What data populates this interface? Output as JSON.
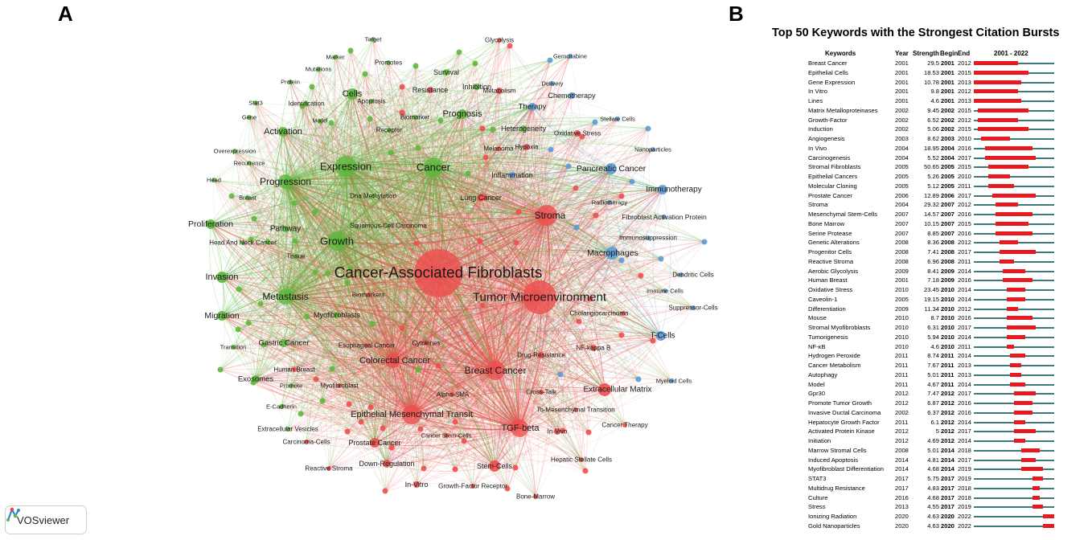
{
  "panel_a": {
    "letter": "A",
    "badge": {
      "icon": "vosviewer-logo-icon",
      "text": "VOSviewer"
    },
    "colors": {
      "green": "#5cb83c",
      "red": "#ee4f4f",
      "blue": "#5b9bd5"
    },
    "nodes": [
      {
        "label": "Cancer-Associated Fibroblasts",
        "cluster": "red"
      },
      {
        "label": "Tumor Microenvironment",
        "cluster": "red"
      },
      {
        "label": "Stroma",
        "cluster": "red"
      },
      {
        "label": "Breast Cancer",
        "cluster": "red"
      },
      {
        "label": "Colorectal Cancer",
        "cluster": "red"
      },
      {
        "label": "Epithelial Mesenchymal Transit",
        "cluster": "red"
      },
      {
        "label": "TGF-beta",
        "cluster": "red"
      },
      {
        "label": "Extracellular Matrix",
        "cluster": "red"
      },
      {
        "label": "Prostate Cancer",
        "cluster": "red"
      },
      {
        "label": "Stem-Cells",
        "cluster": "red"
      },
      {
        "label": "Down-Regulation",
        "cluster": "red"
      },
      {
        "label": "In-Vitro",
        "cluster": "red"
      },
      {
        "label": "In-Vivo",
        "cluster": "red"
      },
      {
        "label": "Lung Cancer",
        "cluster": "red"
      },
      {
        "label": "Hypoxia",
        "cluster": "red"
      },
      {
        "label": "Oxidative Stress",
        "cluster": "red"
      },
      {
        "label": "Metabolism",
        "cluster": "red"
      },
      {
        "label": "Glycolysis",
        "cluster": "red"
      },
      {
        "label": "Resistance",
        "cluster": "red"
      },
      {
        "label": "Drug-Resistance",
        "cluster": "red"
      },
      {
        "label": "NF-kappa B",
        "cluster": "red"
      },
      {
        "label": "Cholangiocarcinoma",
        "cluster": "red"
      },
      {
        "label": "Alpha-SMA",
        "cluster": "red"
      },
      {
        "label": "Cross-Talk",
        "cluster": "red"
      },
      {
        "label": "To-Mesenchymal Transition",
        "cluster": "red"
      },
      {
        "label": "Cancer Stem-Cells",
        "cluster": "red"
      },
      {
        "label": "Cancer Therapy",
        "cluster": "red"
      },
      {
        "label": "Hepatic Stellate Cells",
        "cluster": "red"
      },
      {
        "label": "Growth-Factor Receptor",
        "cluster": "red"
      },
      {
        "label": "Bone-Marrow",
        "cluster": "red"
      },
      {
        "label": "Reactive Stroma",
        "cluster": "red"
      },
      {
        "label": "Carcinoma-Cells",
        "cluster": "red"
      },
      {
        "label": "Myofibroblast",
        "cluster": "red"
      },
      {
        "label": "Human Breast",
        "cluster": "red"
      },
      {
        "label": "Esophageal Cancer",
        "cluster": "red"
      },
      {
        "label": "Cytokines",
        "cluster": "red"
      },
      {
        "label": "Biomarkers",
        "cluster": "red"
      },
      {
        "label": "Melanoma",
        "cluster": "red"
      },
      {
        "label": "Expression",
        "cluster": "green"
      },
      {
        "label": "Cancer",
        "cluster": "green"
      },
      {
        "label": "Growth",
        "cluster": "green"
      },
      {
        "label": "Metastasis",
        "cluster": "green"
      },
      {
        "label": "Progression",
        "cluster": "green"
      },
      {
        "label": "Cells",
        "cluster": "green"
      },
      {
        "label": "Activation",
        "cluster": "green"
      },
      {
        "label": "Prognosis",
        "cluster": "green"
      },
      {
        "label": "Invasion",
        "cluster": "green"
      },
      {
        "label": "Migration",
        "cluster": "green"
      },
      {
        "label": "Proliferation",
        "cluster": "green"
      },
      {
        "label": "Pathway",
        "cluster": "green"
      },
      {
        "label": "Gastric Cancer",
        "cluster": "green"
      },
      {
        "label": "Exosomes",
        "cluster": "green"
      },
      {
        "label": "Myofibroblasts",
        "cluster": "green"
      },
      {
        "label": "Survival",
        "cluster": "green"
      },
      {
        "label": "Inhibition",
        "cluster": "green"
      },
      {
        "label": "Heterogeneity",
        "cluster": "green"
      },
      {
        "label": "Apoptosis",
        "cluster": "green"
      },
      {
        "label": "Receptor",
        "cluster": "green"
      },
      {
        "label": "Biomarker",
        "cluster": "green"
      },
      {
        "label": "Dna Methylation",
        "cluster": "green"
      },
      {
        "label": "Squamous-Cell Carcinoma",
        "cluster": "green"
      },
      {
        "label": "Head And Neck Cancer",
        "cluster": "green"
      },
      {
        "label": "Tissue",
        "cluster": "green"
      },
      {
        "label": "Target",
        "cluster": "green"
      },
      {
        "label": "Promotes",
        "cluster": "green"
      },
      {
        "label": "Marker",
        "cluster": "green"
      },
      {
        "label": "Mutations",
        "cluster": "green"
      },
      {
        "label": "Protein",
        "cluster": "green"
      },
      {
        "label": "Identification",
        "cluster": "green"
      },
      {
        "label": "Stat3",
        "cluster": "green"
      },
      {
        "label": "Gene",
        "cluster": "green"
      },
      {
        "label": "Model",
        "cluster": "green"
      },
      {
        "label": "Overexpression",
        "cluster": "green"
      },
      {
        "label": "Recurrence",
        "cluster": "green"
      },
      {
        "label": "Head",
        "cluster": "green"
      },
      {
        "label": "Breast",
        "cluster": "green"
      },
      {
        "label": "Transition",
        "cluster": "green"
      },
      {
        "label": "Promote",
        "cluster": "green"
      },
      {
        "label": "E-Cadherin",
        "cluster": "green"
      },
      {
        "label": "Extracellular Vesicles",
        "cluster": "green"
      },
      {
        "label": "Macrophages",
        "cluster": "blue"
      },
      {
        "label": "Pancreatic Cancer",
        "cluster": "blue"
      },
      {
        "label": "Immunotherapy",
        "cluster": "blue"
      },
      {
        "label": "T-Cells",
        "cluster": "blue"
      },
      {
        "label": "Therapy",
        "cluster": "blue"
      },
      {
        "label": "Chemotherapy",
        "cluster": "blue"
      },
      {
        "label": "Inflammation",
        "cluster": "blue"
      },
      {
        "label": "Fibroblast Activation Protein",
        "cluster": "blue"
      },
      {
        "label": "Immunosuppression",
        "cluster": "blue"
      },
      {
        "label": "Dendritic Cells",
        "cluster": "blue"
      },
      {
        "label": "Immune Cells",
        "cluster": "blue"
      },
      {
        "label": "Suppressor-Cells",
        "cluster": "blue"
      },
      {
        "label": "Myeloid Cells",
        "cluster": "blue"
      },
      {
        "label": "Stellate Cells",
        "cluster": "blue"
      },
      {
        "label": "Nanoparticles",
        "cluster": "blue"
      },
      {
        "label": "Radiotherapy",
        "cluster": "blue"
      },
      {
        "label": "Gemcitabine",
        "cluster": "blue"
      },
      {
        "label": "Delivery",
        "cluster": "blue"
      }
    ]
  },
  "panel_b": {
    "letter": "B",
    "title": "Top 50 Keywords with the Strongest Citation Bursts",
    "headers": {
      "keywords": "Keywords",
      "year": "Year",
      "strength": "Strength",
      "begin": "Begin",
      "end": "End",
      "range": "2001 - 2022"
    },
    "range_start": 2001,
    "range_end": 2022,
    "colors": {
      "burst": "#e8191f",
      "track": "#3e7a79"
    },
    "rows": [
      {
        "keyword": "Breast Cancer",
        "year": "2001",
        "strength": "29.5",
        "begin": "2001",
        "end": "2012"
      },
      {
        "keyword": "Epithelial Cells",
        "year": "2001",
        "strength": "18.53",
        "begin": "2001",
        "end": "2015"
      },
      {
        "keyword": "Gene Expression",
        "year": "2001",
        "strength": "10.78",
        "begin": "2001",
        "end": "2013"
      },
      {
        "keyword": "In Vitro",
        "year": "2001",
        "strength": "9.8",
        "begin": "2001",
        "end": "2012"
      },
      {
        "keyword": "Lines",
        "year": "2001",
        "strength": "4.6",
        "begin": "2001",
        "end": "2013"
      },
      {
        "keyword": "Matrix Metalloproteinases",
        "year": "2002",
        "strength": "9.45",
        "begin": "2002",
        "end": "2015"
      },
      {
        "keyword": "Growth-Factor",
        "year": "2002",
        "strength": "6.52",
        "begin": "2002",
        "end": "2012"
      },
      {
        "keyword": "Induction",
        "year": "2002",
        "strength": "5.06",
        "begin": "2002",
        "end": "2015"
      },
      {
        "keyword": "Angiogenesis",
        "year": "2003",
        "strength": "8.62",
        "begin": "2003",
        "end": "2010"
      },
      {
        "keyword": "In Vivo",
        "year": "2004",
        "strength": "18.95",
        "begin": "2004",
        "end": "2016"
      },
      {
        "keyword": "Carcinogenesis",
        "year": "2004",
        "strength": "5.52",
        "begin": "2004",
        "end": "2017"
      },
      {
        "keyword": "Stromal Fibroblasts",
        "year": "2005",
        "strength": "50.65",
        "begin": "2005",
        "end": "2015"
      },
      {
        "keyword": "Epithelial Cancers",
        "year": "2005",
        "strength": "5.26",
        "begin": "2005",
        "end": "2010"
      },
      {
        "keyword": "Molecular Cloning",
        "year": "2005",
        "strength": "5.12",
        "begin": "2005",
        "end": "2011"
      },
      {
        "keyword": "Prostate Cancer",
        "year": "2006",
        "strength": "12.89",
        "begin": "2006",
        "end": "2017"
      },
      {
        "keyword": "Stroma",
        "year": "2004",
        "strength": "29.32",
        "begin": "2007",
        "end": "2012"
      },
      {
        "keyword": "Mesenchymal Stem-Cells",
        "year": "2007",
        "strength": "14.57",
        "begin": "2007",
        "end": "2016"
      },
      {
        "keyword": "Bone Marrow",
        "year": "2007",
        "strength": "10.15",
        "begin": "2007",
        "end": "2015"
      },
      {
        "keyword": "Serine Protease",
        "year": "2007",
        "strength": "8.85",
        "begin": "2007",
        "end": "2016"
      },
      {
        "keyword": "Genetic Alterations",
        "year": "2008",
        "strength": "8.36",
        "begin": "2008",
        "end": "2012"
      },
      {
        "keyword": "Progenitor Cells",
        "year": "2008",
        "strength": "7.41",
        "begin": "2008",
        "end": "2017"
      },
      {
        "keyword": "Reactive Stroma",
        "year": "2008",
        "strength": "6.96",
        "begin": "2008",
        "end": "2011"
      },
      {
        "keyword": "Aerobic Glycolysis",
        "year": "2009",
        "strength": "8.41",
        "begin": "2009",
        "end": "2014"
      },
      {
        "keyword": "Human Breast",
        "year": "2001",
        "strength": "7.18",
        "begin": "2009",
        "end": "2016"
      },
      {
        "keyword": "Oxidative Stress",
        "year": "2010",
        "strength": "23.45",
        "begin": "2010",
        "end": "2014"
      },
      {
        "keyword": "Caveolin-1",
        "year": "2005",
        "strength": "19.15",
        "begin": "2010",
        "end": "2014"
      },
      {
        "keyword": "Differentiation",
        "year": "2009",
        "strength": "11.34",
        "begin": "2010",
        "end": "2012"
      },
      {
        "keyword": "Mouse",
        "year": "2010",
        "strength": "8.7",
        "begin": "2010",
        "end": "2016"
      },
      {
        "keyword": "Stromal Myofibroblasts",
        "year": "2010",
        "strength": "6.31",
        "begin": "2010",
        "end": "2017"
      },
      {
        "keyword": "Tumorigenesis",
        "year": "2010",
        "strength": "5.94",
        "begin": "2010",
        "end": "2014"
      },
      {
        "keyword": "NF-κB",
        "year": "2010",
        "strength": "4.6",
        "begin": "2010",
        "end": "2011"
      },
      {
        "keyword": "Hydrogen Peroxide",
        "year": "2011",
        "strength": "8.74",
        "begin": "2011",
        "end": "2014"
      },
      {
        "keyword": "Cancer Metabolism",
        "year": "2011",
        "strength": "7.67",
        "begin": "2011",
        "end": "2013"
      },
      {
        "keyword": "Autophagy",
        "year": "2011",
        "strength": "5.01",
        "begin": "2011",
        "end": "2013"
      },
      {
        "keyword": "Model",
        "year": "2011",
        "strength": "4.67",
        "begin": "2011",
        "end": "2014"
      },
      {
        "keyword": "Gpr30",
        "year": "2012",
        "strength": "7.47",
        "begin": "2012",
        "end": "2017"
      },
      {
        "keyword": "Promote Tumor Growth",
        "year": "2012",
        "strength": "6.87",
        "begin": "2012",
        "end": "2016"
      },
      {
        "keyword": "Invasive Ductal Carcinoma",
        "year": "2002",
        "strength": "6.37",
        "begin": "2012",
        "end": "2016"
      },
      {
        "keyword": "Hepatocyte Growth Factor",
        "year": "2011",
        "strength": "6.1",
        "begin": "2012",
        "end": "2014"
      },
      {
        "keyword": "Activated Protein Kinase",
        "year": "2012",
        "strength": "5",
        "begin": "2012",
        "end": "2017"
      },
      {
        "keyword": "Initiation",
        "year": "2012",
        "strength": "4.69",
        "begin": "2012",
        "end": "2014"
      },
      {
        "keyword": "Marrow Stromal Cells",
        "year": "2008",
        "strength": "5.01",
        "begin": "2014",
        "end": "2018"
      },
      {
        "keyword": "Induced Apoptosis",
        "year": "2014",
        "strength": "4.81",
        "begin": "2014",
        "end": "2017"
      },
      {
        "keyword": "Myofibroblast Differentiation",
        "year": "2014",
        "strength": "4.68",
        "begin": "2014",
        "end": "2019"
      },
      {
        "keyword": "STAT3",
        "year": "2017",
        "strength": "5.75",
        "begin": "2017",
        "end": "2019"
      },
      {
        "keyword": "Multidrug Resistance",
        "year": "2017",
        "strength": "4.83",
        "begin": "2017",
        "end": "2018"
      },
      {
        "keyword": "Culture",
        "year": "2016",
        "strength": "4.68",
        "begin": "2017",
        "end": "2018"
      },
      {
        "keyword": "Stress",
        "year": "2013",
        "strength": "4.55",
        "begin": "2017",
        "end": "2019"
      },
      {
        "keyword": "Ionizing Radiation",
        "year": "2020",
        "strength": "4.63",
        "begin": "2020",
        "end": "2022"
      },
      {
        "keyword": "Gold Nanoparticles",
        "year": "2020",
        "strength": "4.63",
        "begin": "2020",
        "end": "2022"
      }
    ]
  }
}
